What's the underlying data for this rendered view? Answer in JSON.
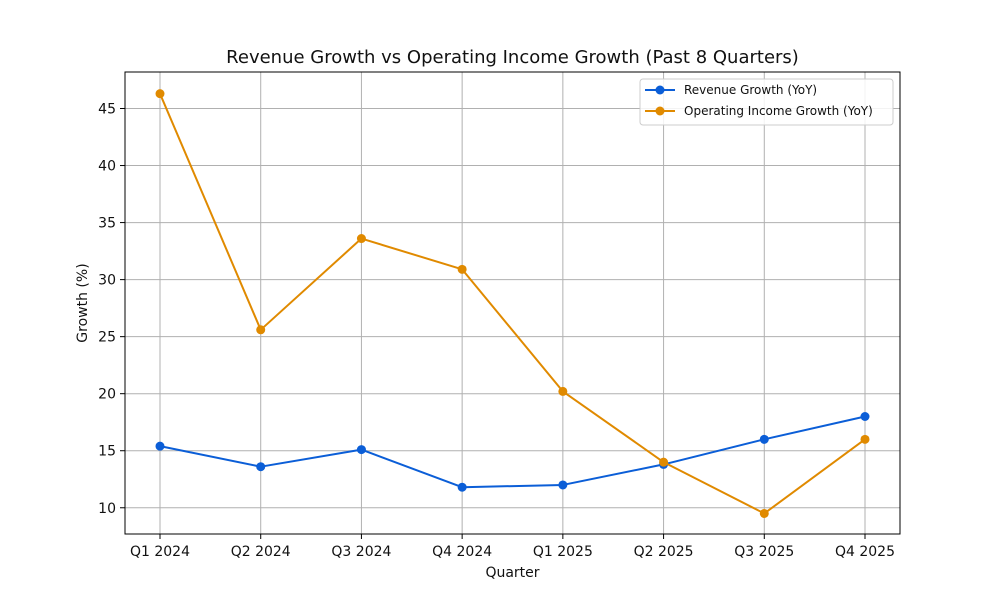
{
  "chart_data": {
    "type": "line",
    "title": "Revenue Growth vs Operating Income Growth (Past 8 Quarters)",
    "xlabel": "Quarter",
    "ylabel": "Growth (%)",
    "categories": [
      "Q1 2024",
      "Q2 2024",
      "Q3 2024",
      "Q4 2024",
      "Q1 2025",
      "Q2 2025",
      "Q3 2025",
      "Q4 2025"
    ],
    "ylim": [
      7.7,
      48.2
    ],
    "yticks": [
      10,
      15,
      20,
      25,
      30,
      35,
      40,
      45
    ],
    "grid": true,
    "legend_position": "top-right",
    "series": [
      {
        "name": "Revenue Growth (YoY)",
        "color": "#0b5ed7",
        "values": [
          15.4,
          13.6,
          15.1,
          11.8,
          12.0,
          13.8,
          16.0,
          18.0
        ]
      },
      {
        "name": "Operating Income Growth (YoY)",
        "color": "#e08a00",
        "values": [
          46.3,
          25.6,
          33.6,
          30.9,
          20.2,
          14.0,
          9.5,
          16.0
        ]
      }
    ]
  }
}
